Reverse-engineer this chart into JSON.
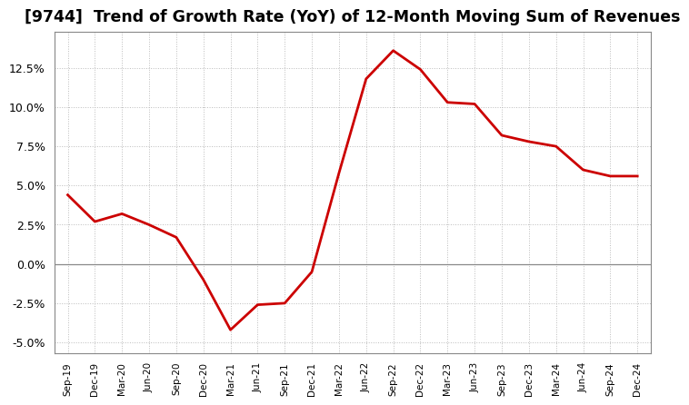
{
  "title": "[9744]  Trend of Growth Rate (YoY) of 12-Month Moving Sum of Revenues",
  "title_fontsize": 12.5,
  "line_color": "#cc0000",
  "line_width": 2.0,
  "background_color": "#ffffff",
  "ylim": [
    -0.057,
    0.148
  ],
  "yticks": [
    -0.05,
    -0.025,
    0.0,
    0.025,
    0.05,
    0.075,
    0.1,
    0.125
  ],
  "x_labels": [
    "Sep-19",
    "Dec-19",
    "Mar-20",
    "Jun-20",
    "Sep-20",
    "Dec-20",
    "Mar-21",
    "Jun-21",
    "Sep-21",
    "Dec-21",
    "Mar-22",
    "Jun-22",
    "Sep-22",
    "Dec-22",
    "Mar-23",
    "Jun-23",
    "Sep-23",
    "Dec-23",
    "Mar-24",
    "Jun-24",
    "Sep-24",
    "Dec-24"
  ],
  "values": [
    0.044,
    0.027,
    0.032,
    0.025,
    0.017,
    -0.01,
    -0.042,
    -0.026,
    -0.025,
    -0.005,
    0.058,
    0.118,
    0.136,
    0.124,
    0.103,
    0.102,
    0.082,
    0.078,
    0.075,
    0.06,
    0.056,
    0.056
  ],
  "grid_color": "#bbbbbb",
  "grid_linestyle": ":",
  "zero_line_color": "#888888",
  "spine_color": "#888888"
}
